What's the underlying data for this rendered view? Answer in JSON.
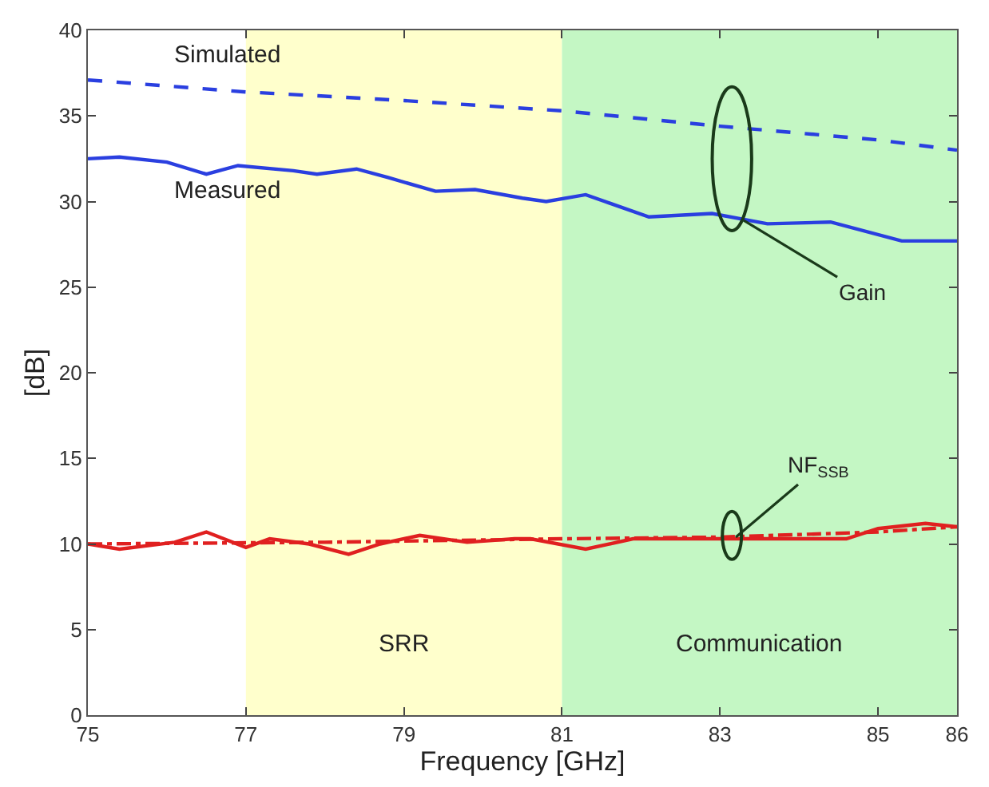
{
  "chart_data": {
    "type": "line",
    "xlabel": "Frequency [GHz]",
    "ylabel": "[dB]",
    "xlim": [
      75,
      86
    ],
    "xticks": [
      75,
      77,
      79,
      81,
      83,
      85,
      86
    ],
    "ylim": [
      0,
      40
    ],
    "yticks": [
      0,
      5,
      10,
      15,
      20,
      25,
      30,
      35,
      40
    ],
    "grid": false,
    "legend": false,
    "series": [
      {
        "name": "Simulated",
        "color": "#2a3fe0",
        "line_style": "dashed",
        "x": [
          75,
          77,
          79,
          81,
          83,
          85,
          86
        ],
        "values": [
          37.1,
          36.4,
          35.9,
          35.3,
          34.4,
          33.6,
          33.0
        ]
      },
      {
        "name": "Measured",
        "color": "#2a3fe0",
        "line_style": "solid",
        "x": [
          75.0,
          75.4,
          76.0,
          76.5,
          76.9,
          77.6,
          77.9,
          78.4,
          78.8,
          79.4,
          79.9,
          80.5,
          80.8,
          81.3,
          82.1,
          82.9,
          83.6,
          84.4,
          85.3,
          86.0
        ],
        "values": [
          32.5,
          32.6,
          32.3,
          31.6,
          32.1,
          31.8,
          31.6,
          31.9,
          31.4,
          30.6,
          30.7,
          30.2,
          30.0,
          30.4,
          29.1,
          29.3,
          28.7,
          28.8,
          27.7,
          27.7
        ]
      },
      {
        "color": "#e02020",
        "line_style": "solid",
        "x": [
          75.0,
          75.4,
          76.1,
          76.5,
          77.0,
          77.3,
          77.8,
          78.3,
          78.7,
          79.2,
          79.8,
          80.4,
          80.6,
          81.3,
          81.9,
          83.0,
          84.6,
          85.0,
          85.6,
          86.0
        ],
        "values": [
          10.0,
          9.7,
          10.1,
          10.7,
          9.8,
          10.3,
          10.0,
          9.4,
          10.0,
          10.5,
          10.1,
          10.3,
          10.3,
          9.7,
          10.3,
          10.3,
          10.3,
          10.9,
          11.2,
          11.0
        ]
      },
      {
        "color": "#e02020",
        "line_style": "dashdot",
        "x": [
          75,
          78,
          81,
          83,
          85,
          86
        ],
        "values": [
          10.0,
          10.1,
          10.3,
          10.4,
          10.7,
          11.0
        ]
      }
    ],
    "bands": [
      {
        "axis": "x",
        "from": 77,
        "to": 81,
        "label": "SRR",
        "color": "#ffffcc"
      },
      {
        "axis": "x",
        "from": 81,
        "to": 86,
        "label": "Communication",
        "color": "#c4f7c4"
      }
    ],
    "annotations": [
      {
        "text": "Gain",
        "x": 83.3,
        "y": 28.9
      },
      {
        "text": "NF$_{SSB}$",
        "x": 83.2,
        "y": 10.4
      }
    ]
  }
}
